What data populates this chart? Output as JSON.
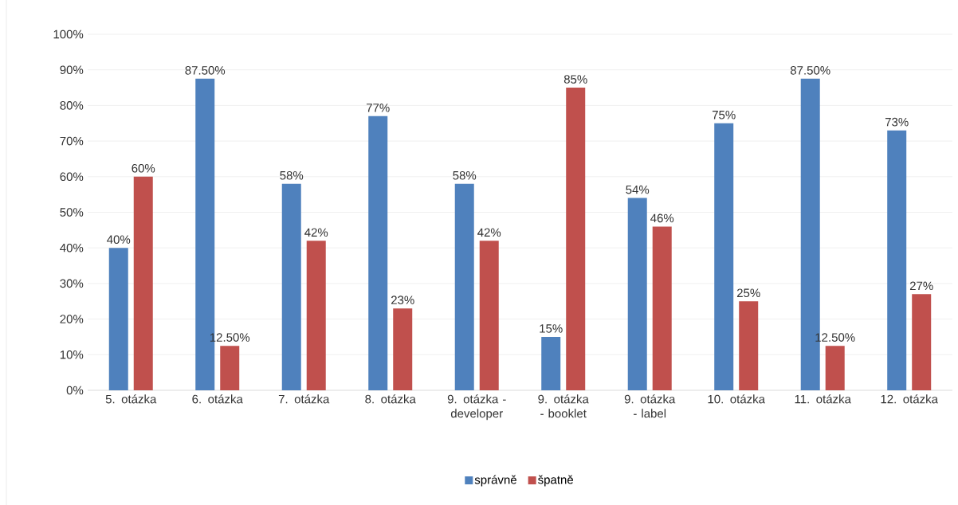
{
  "chart_data": {
    "type": "bar",
    "categories": [
      "5. otázka",
      "6. otázka",
      "7. otázka",
      "8. otázka",
      "9. otázka - developer",
      "9. otázka - booklet",
      "9. otázka - label",
      "10. otázka",
      "11. otázka",
      "12. otázka"
    ],
    "series": [
      {
        "name": "správně",
        "color": "#4f81bd",
        "values": [
          40,
          87.5,
          58,
          77,
          58,
          15,
          54,
          75,
          87.5,
          73
        ],
        "value_labels": [
          "40%",
          "87.50%",
          "58%",
          "77%",
          "58%",
          "15%",
          "54%",
          "75%",
          "87.50%",
          "73%"
        ]
      },
      {
        "name": "špatně",
        "color": "#c0504d",
        "values": [
          60,
          12.5,
          42,
          23,
          42,
          85,
          46,
          25,
          12.5,
          27
        ],
        "value_labels": [
          "60%",
          "12.50%",
          "42%",
          "23%",
          "42%",
          "85%",
          "46%",
          "25%",
          "12.50%",
          "27%"
        ]
      }
    ],
    "ylim": [
      0,
      100
    ],
    "yticks": [
      {
        "value": 0,
        "label": "0%"
      },
      {
        "value": 10,
        "label": "10%"
      },
      {
        "value": 20,
        "label": "20%"
      },
      {
        "value": 30,
        "label": "30%"
      },
      {
        "value": 40,
        "label": "40%"
      },
      {
        "value": 50,
        "label": "50%"
      },
      {
        "value": 60,
        "label": "60%"
      },
      {
        "value": 70,
        "label": "70%"
      },
      {
        "value": 80,
        "label": "80%"
      },
      {
        "value": 90,
        "label": "90%"
      },
      {
        "value": 100,
        "label": "100%"
      }
    ],
    "grid": "y",
    "legend": "bottom"
  }
}
